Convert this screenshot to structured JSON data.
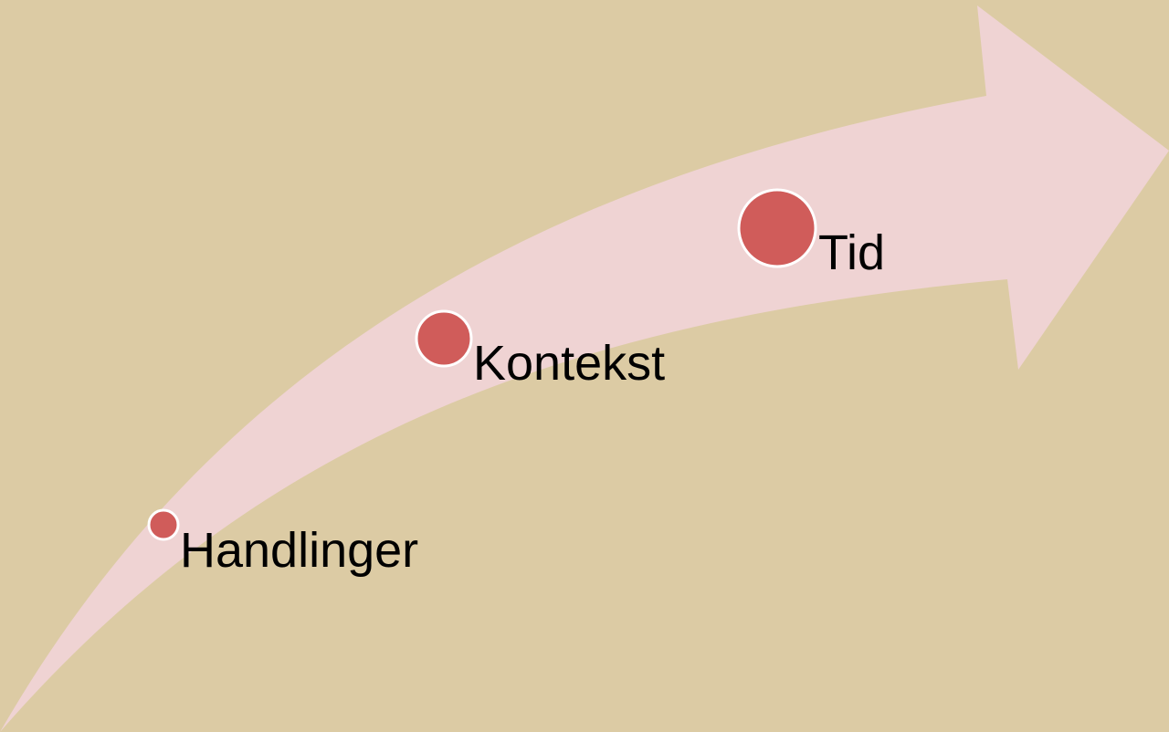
{
  "nodes": [
    {
      "label": "Handlinger"
    },
    {
      "label": "Kontekst"
    },
    {
      "label": "Tid"
    }
  ]
}
